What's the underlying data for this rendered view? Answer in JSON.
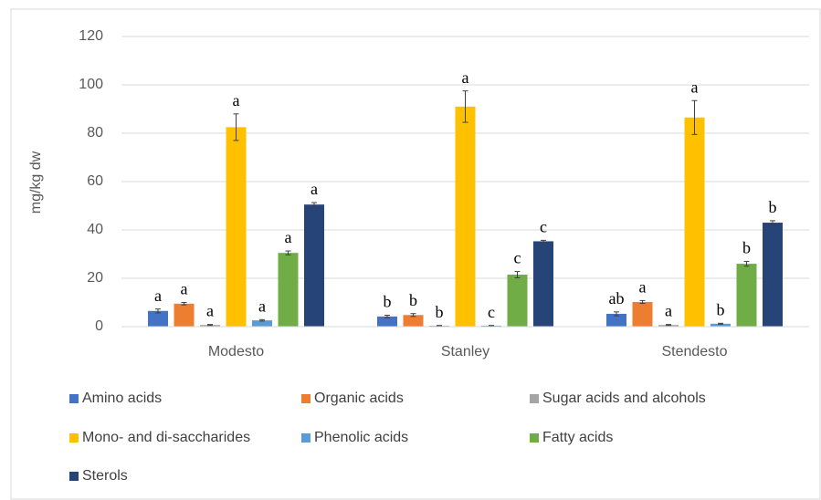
{
  "chart_data": {
    "type": "bar",
    "y_label": "mg/kg dw",
    "categories": [
      "Modesto",
      "Stanley",
      "Stendesto"
    ],
    "series": [
      {
        "name": "Amino acids",
        "color": "#4472c4",
        "values": [
          6.5,
          4.2,
          5.3
        ],
        "errors": [
          0.8,
          0.5,
          0.8
        ],
        "letters": [
          "a",
          "b",
          "ab"
        ]
      },
      {
        "name": "Organic acids",
        "color": "#ed7d31",
        "values": [
          9.5,
          4.8,
          10.2
        ],
        "errors": [
          0.5,
          0.6,
          0.6
        ],
        "letters": [
          "a",
          "b",
          "a"
        ]
      },
      {
        "name": "Sugar acids and alcohols",
        "color": "#a5a5a5",
        "values": [
          0.7,
          0.4,
          0.7
        ],
        "errors": [
          0.2,
          0.1,
          0.2
        ],
        "letters": [
          "a",
          "b",
          "a"
        ]
      },
      {
        "name": "Mono- and di-saccharides",
        "color": "#ffc000",
        "values": [
          82.5,
          91,
          86.5
        ],
        "errors": [
          5.5,
          6.5,
          7
        ],
        "letters": [
          "a",
          "a",
          "a"
        ]
      },
      {
        "name": "Phenolic acids",
        "color": "#5b9bd5",
        "values": [
          2.6,
          0.4,
          1.2
        ],
        "errors": [
          0.3,
          0.1,
          0.2
        ],
        "letters": [
          "a",
          "c",
          "b"
        ]
      },
      {
        "name": "Fatty acids",
        "color": "#70ad47",
        "values": [
          30.5,
          21.5,
          26
        ],
        "errors": [
          0.8,
          1.3,
          1
        ],
        "letters": [
          "a",
          "c",
          "b"
        ]
      },
      {
        "name": "Sterols",
        "color": "#264478",
        "values": [
          50.5,
          35.3,
          43
        ],
        "errors": [
          0.8,
          0.4,
          0.8
        ],
        "letters": [
          "a",
          "c",
          "b"
        ]
      }
    ],
    "ylim": [
      0,
      120
    ],
    "yticks": [
      0,
      20,
      40,
      60,
      80,
      100,
      120
    ],
    "grid": true,
    "legend": "bottom"
  }
}
